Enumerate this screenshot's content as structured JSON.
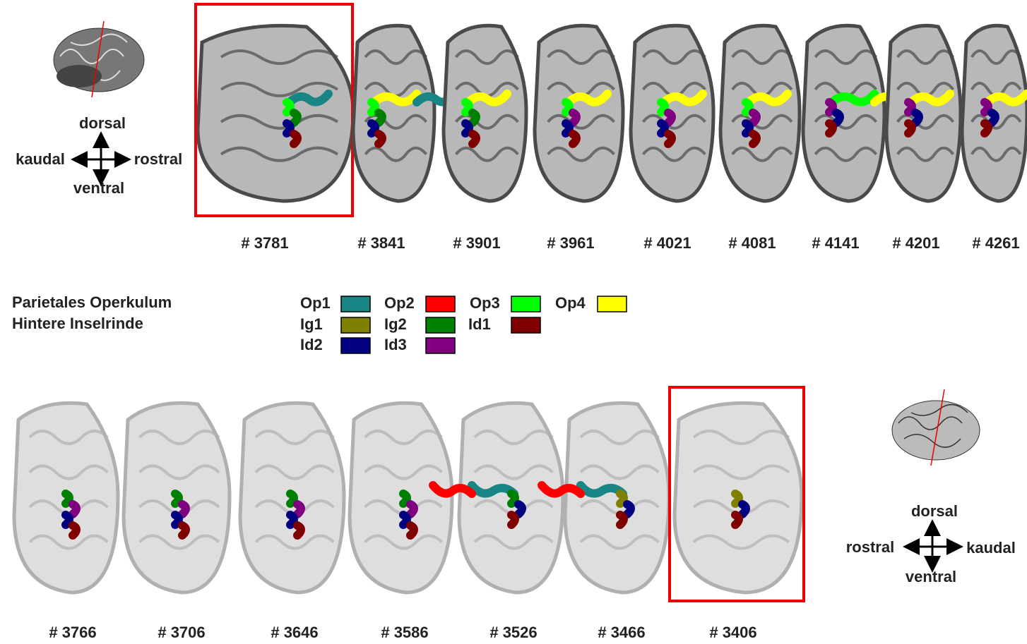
{
  "orientation_top": {
    "dorsal": "dorsal",
    "kaudal": "kaudal",
    "rostral": "rostral",
    "ventral": "ventral"
  },
  "orientation_bottom": {
    "dorsal": "dorsal",
    "rostral": "rostral",
    "kaudal": "kaudal",
    "ventral": "ventral"
  },
  "sections_top": [
    {
      "label": "# 3781",
      "highlighted": true
    },
    {
      "label": "# 3841",
      "highlighted": false
    },
    {
      "label": "# 3901",
      "highlighted": false
    },
    {
      "label": "# 3961",
      "highlighted": false
    },
    {
      "label": "# 4021",
      "highlighted": false
    },
    {
      "label": "# 4081",
      "highlighted": false
    },
    {
      "label": "# 4141",
      "highlighted": false
    },
    {
      "label": "# 4201",
      "highlighted": false
    },
    {
      "label": "# 4261",
      "highlighted": false
    }
  ],
  "sections_bottom": [
    {
      "label": "# 3766",
      "highlighted": false
    },
    {
      "label": "# 3706",
      "highlighted": false
    },
    {
      "label": "# 3646",
      "highlighted": false
    },
    {
      "label": "# 3586",
      "highlighted": false
    },
    {
      "label": "# 3526",
      "highlighted": false
    },
    {
      "label": "# 3466",
      "highlighted": false
    },
    {
      "label": "# 3406",
      "highlighted": true
    }
  ],
  "legend": {
    "groups": [
      "Parietales Operkulum",
      "Hintere Inselrinde"
    ],
    "items": [
      {
        "name": "Op1",
        "color": "#1a8585"
      },
      {
        "name": "Op2",
        "color": "#ff0000"
      },
      {
        "name": "Op3",
        "color": "#00ff00"
      },
      {
        "name": "Op4",
        "color": "#ffff00"
      },
      {
        "name": "Ig1",
        "color": "#808000"
      },
      {
        "name": "Ig2",
        "color": "#008000"
      },
      {
        "name": "Id1",
        "color": "#800000"
      },
      {
        "name": "Id2",
        "color": "#000080"
      },
      {
        "name": "Id3",
        "color": "#800080"
      }
    ]
  }
}
